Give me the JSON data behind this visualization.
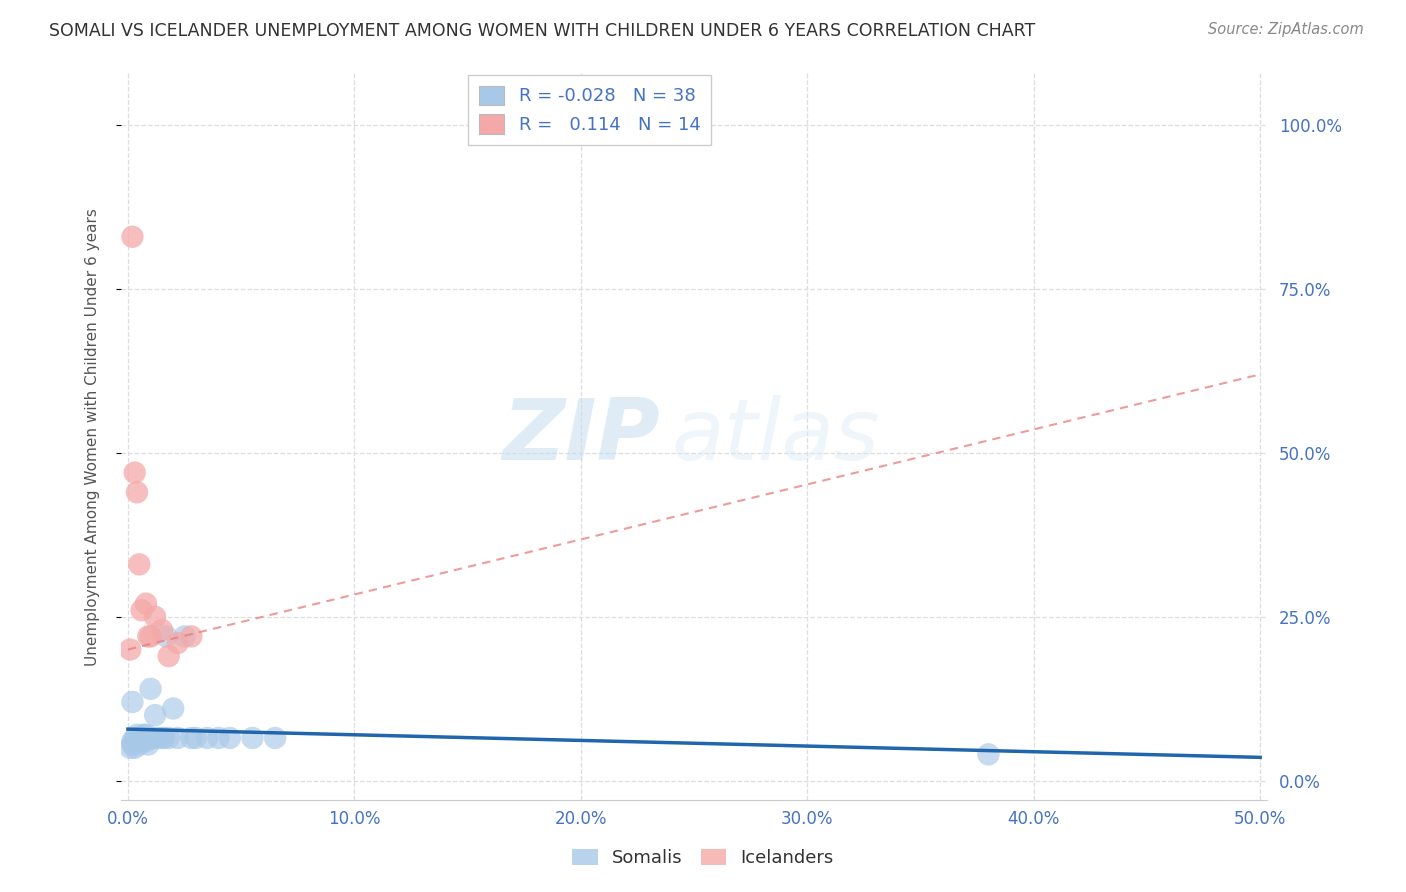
{
  "title": "SOMALI VS ICELANDER UNEMPLOYMENT AMONG WOMEN WITH CHILDREN UNDER 6 YEARS CORRELATION CHART",
  "source": "Source: ZipAtlas.com",
  "ylabel": "Unemployment Among Women with Children Under 6 years",
  "legend_somali": "Somalis",
  "legend_icelander": "Icelanders",
  "R_somali": -0.028,
  "N_somali": 38,
  "R_icelander": 0.114,
  "N_icelander": 14,
  "somali_color": "#a8c8e8",
  "icelander_color": "#f4a9a8",
  "somali_line_color": "#2166ac",
  "icelander_line_color": "#e87a7a",
  "xlim": [
    -0.003,
    0.503
  ],
  "ylim": [
    -0.03,
    1.08
  ],
  "somali_x": [
    0.001,
    0.002,
    0.002,
    0.003,
    0.003,
    0.004,
    0.004,
    0.005,
    0.005,
    0.006,
    0.006,
    0.007,
    0.007,
    0.008,
    0.008,
    0.009,
    0.009,
    0.01,
    0.01,
    0.011,
    0.012,
    0.013,
    0.015,
    0.016,
    0.017,
    0.018,
    0.02,
    0.022,
    0.025,
    0.028,
    0.03,
    0.035,
    0.04,
    0.045,
    0.055,
    0.065,
    0.38,
    0.002
  ],
  "somali_y": [
    0.05,
    0.06,
    0.055,
    0.05,
    0.065,
    0.06,
    0.07,
    0.055,
    0.065,
    0.06,
    0.065,
    0.07,
    0.065,
    0.06,
    0.07,
    0.065,
    0.055,
    0.065,
    0.14,
    0.065,
    0.1,
    0.065,
    0.065,
    0.065,
    0.22,
    0.065,
    0.11,
    0.065,
    0.22,
    0.065,
    0.065,
    0.065,
    0.065,
    0.065,
    0.065,
    0.065,
    0.04,
    0.12
  ],
  "icelander_x": [
    0.001,
    0.002,
    0.003,
    0.004,
    0.005,
    0.006,
    0.008,
    0.009,
    0.01,
    0.012,
    0.015,
    0.018,
    0.022,
    0.028
  ],
  "icelander_y": [
    0.2,
    0.83,
    0.47,
    0.44,
    0.33,
    0.26,
    0.27,
    0.22,
    0.22,
    0.25,
    0.23,
    0.19,
    0.21,
    0.22
  ],
  "watermark_zip": "ZIP",
  "watermark_atlas": "atlas",
  "background_color": "#ffffff",
  "grid_color": "#dddddd"
}
